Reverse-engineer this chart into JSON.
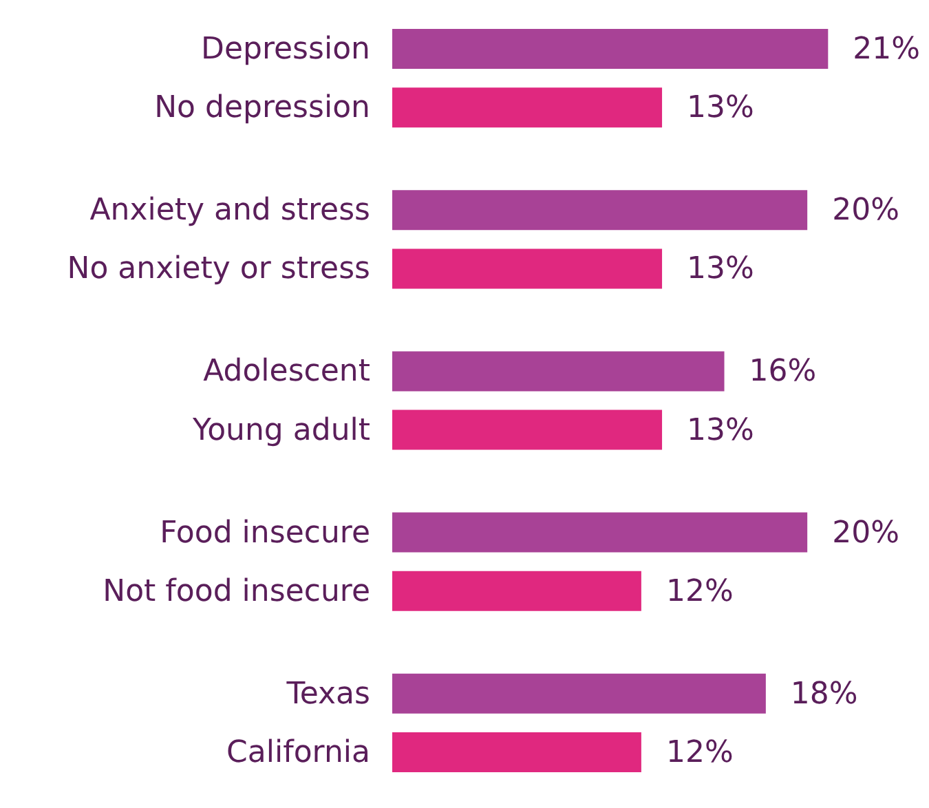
{
  "chart_data": {
    "type": "bar",
    "orientation": "horizontal",
    "categories": [
      "Depression",
      "No depression",
      "Anxiety and stress",
      "No anxiety or stress",
      "Adolescent",
      "Young adult",
      "Food insecure",
      "Not food insecure",
      "Texas",
      "California"
    ],
    "values": [
      21,
      13,
      20,
      13,
      16,
      13,
      20,
      12,
      18,
      12
    ],
    "colors": [
      "#a84296",
      "#e0287f",
      "#a84296",
      "#e0287f",
      "#a84296",
      "#e0287f",
      "#a84296",
      "#e0287f",
      "#a84296",
      "#e0287f"
    ],
    "value_labels": [
      "21%",
      "13%",
      "20%",
      "13%",
      "16%",
      "13%",
      "20%",
      "12%",
      "18%",
      "12%"
    ]
  }
}
